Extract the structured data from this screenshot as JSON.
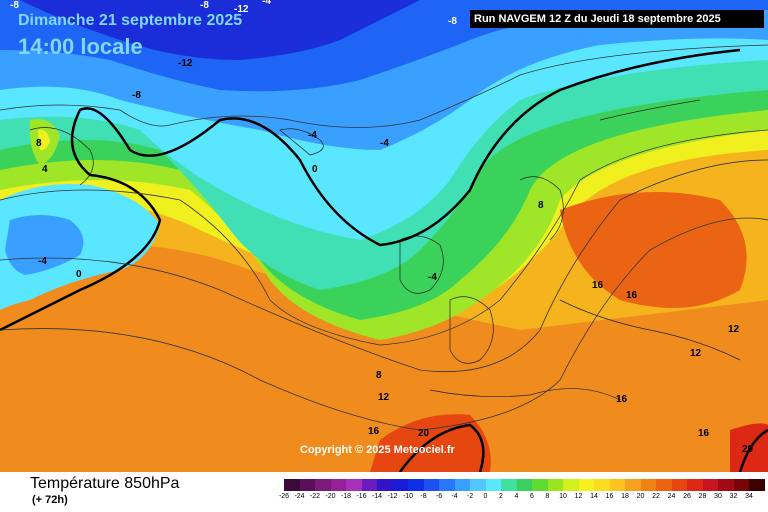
{
  "header": {
    "date": "Dimanche 21 septembre 2025",
    "time": "14:00 locale",
    "run": "Run NAVGEM 12 Z du Jeudi 18 septembre 2025"
  },
  "copyright": "Copyright © 2025 Meteociel.fr",
  "footer": {
    "title": "Température 850hPa",
    "subtitle": "(+ 72h)"
  },
  "legend": {
    "values": [
      "-26",
      "-24",
      "-22",
      "-20",
      "-18",
      "-16",
      "-14",
      "-12",
      "-10",
      "-8",
      "-6",
      "-4",
      "-2",
      "0",
      "2",
      "4",
      "6",
      "8",
      "10",
      "12",
      "14",
      "16",
      "18",
      "20",
      "22",
      "24",
      "26",
      "28",
      "30",
      "32",
      "34"
    ],
    "colors": [
      "#3a0a3a",
      "#5a0f5a",
      "#7a1a7a",
      "#96209a",
      "#a630b8",
      "#6a1abf",
      "#3214c8",
      "#1a1ad8",
      "#0f2fe6",
      "#1e50f0",
      "#2878ff",
      "#3aa0ff",
      "#50c8ff",
      "#5ae6ff",
      "#40e0a0",
      "#3ad060",
      "#60dc30",
      "#9ae61e",
      "#d2f01e",
      "#f5f01e",
      "#fadc1e",
      "#fac31e",
      "#f5a01e",
      "#f08214",
      "#eb640f",
      "#e6460f",
      "#dc2814",
      "#c8141e",
      "#a00a14",
      "#780508",
      "#3c0000"
    ]
  },
  "map_labels": [
    {
      "text": "-8"
    },
    {
      "text": "-8"
    },
    {
      "text": "-12"
    },
    {
      "text": "-8"
    },
    {
      "text": "-4"
    },
    {
      "text": "-12"
    },
    {
      "text": "-8"
    },
    {
      "text": "-4"
    },
    {
      "text": "-4"
    },
    {
      "text": "8"
    },
    {
      "text": "4"
    },
    {
      "text": "0"
    },
    {
      "text": "-4"
    },
    {
      "text": "0"
    },
    {
      "text": "8"
    },
    {
      "text": "-4"
    },
    {
      "text": "16"
    },
    {
      "text": "16"
    },
    {
      "text": "12"
    },
    {
      "text": "12"
    },
    {
      "text": "8"
    },
    {
      "text": "12"
    },
    {
      "text": "16"
    },
    {
      "text": "20"
    },
    {
      "text": "16"
    },
    {
      "text": "16"
    },
    {
      "text": "20"
    }
  ]
}
